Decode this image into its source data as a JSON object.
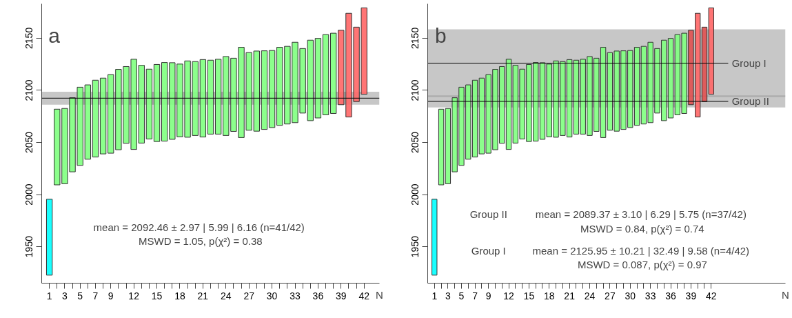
{
  "chart_data": [
    {
      "type": "bar",
      "title": "a",
      "xlabel": "N",
      "x": [
        1,
        2,
        3,
        4,
        5,
        6,
        7,
        8,
        9,
        10,
        11,
        12,
        13,
        14,
        15,
        16,
        17,
        18,
        19,
        20,
        21,
        22,
        23,
        24,
        25,
        26,
        27,
        28,
        29,
        30,
        31,
        32,
        33,
        34,
        35,
        36,
        37,
        38,
        39,
        40,
        41,
        42
      ],
      "base": [
        1922.7,
        2009.3,
        2010.4,
        2021.8,
        2028.0,
        2033.9,
        2036.0,
        2039.0,
        2039.7,
        2043.0,
        2049.2,
        2043.3,
        2049.4,
        2053.3,
        2050.9,
        2051.3,
        2053.0,
        2055.4,
        2055.0,
        2056.7,
        2055.2,
        2058.0,
        2058.0,
        2056.7,
        2060.6,
        2054.7,
        2061.7,
        2060.8,
        2062.5,
        2064.3,
        2066.4,
        2067.7,
        2069.0,
        2078.2,
        2070.9,
        2073.5,
        2076.5,
        2077.8,
        2086.2,
        2074.4,
        2089.2,
        2096.2
      ],
      "values": [
        72.8,
        72.6,
        72.2,
        71.1,
        75.0,
        71.3,
        73.7,
        72.7,
        75.4,
        77.1,
        73.6,
        86.5,
        74.6,
        67.0,
        73.9,
        75.4,
        73.5,
        69.8,
        73.2,
        70.9,
        74.3,
        70.9,
        71.8,
        75.7,
        70.2,
        86.6,
        74.5,
        76.9,
        75.4,
        73.9,
        74.9,
        74.5,
        77.1,
        61.9,
        77.2,
        76.3,
        77.0,
        77.0,
        71.4,
        99.5,
        71.4,
        82.9
      ],
      "colors": [
        "#00ffff",
        "#80ff80",
        "#80ff80",
        "#80ff80",
        "#80ff80",
        "#80ff80",
        "#80ff80",
        "#80ff80",
        "#80ff80",
        "#80ff80",
        "#80ff80",
        "#80ff80",
        "#80ff80",
        "#80ff80",
        "#80ff80",
        "#80ff80",
        "#80ff80",
        "#80ff80",
        "#80ff80",
        "#80ff80",
        "#80ff80",
        "#80ff80",
        "#80ff80",
        "#80ff80",
        "#80ff80",
        "#80ff80",
        "#80ff80",
        "#80ff80",
        "#80ff80",
        "#80ff80",
        "#80ff80",
        "#80ff80",
        "#80ff80",
        "#80ff80",
        "#80ff80",
        "#80ff80",
        "#80ff80",
        "#80ff80",
        "#ff6666",
        "#ff6666",
        "#ff6666",
        "#ff6666"
      ],
      "xlim": [
        0,
        44
      ],
      "ylim": [
        1915,
        2183
      ],
      "xticks": [
        1,
        {
          "value": 2,
          "label": null
        },
        3,
        {
          "value": 4,
          "label": null
        },
        5,
        {
          "value": 6,
          "label": null
        },
        7,
        {
          "value": 8,
          "label": null
        },
        9,
        {
          "value": 10,
          "label": null
        },
        {
          "value": 11,
          "label": null
        },
        12,
        {
          "value": 13,
          "label": null
        },
        {
          "value": 14,
          "label": null
        },
        15,
        {
          "value": 16,
          "label": null
        },
        {
          "value": 17,
          "label": null
        },
        18,
        {
          "value": 19,
          "label": null
        },
        {
          "value": 20,
          "label": null
        },
        21,
        {
          "value": 22,
          "label": null
        },
        {
          "value": 23,
          "label": null
        },
        24,
        {
          "value": 25,
          "label": null
        },
        {
          "value": 26,
          "label": null
        },
        27,
        {
          "value": 28,
          "label": null
        },
        {
          "value": 29,
          "label": null
        },
        30,
        {
          "value": 31,
          "label": null
        },
        {
          "value": 32,
          "label": null
        },
        33,
        {
          "value": 34,
          "label": null
        },
        {
          "value": 35,
          "label": null
        },
        36,
        {
          "value": 37,
          "label": null
        },
        {
          "value": 38,
          "label": null
        },
        39,
        {
          "value": 40,
          "label": null
        },
        {
          "value": 41,
          "label": null
        },
        42
      ],
      "yticks": [
        1950,
        2000,
        2050,
        2100,
        2150
      ],
      "ref_lines": [
        {
          "axis": "y",
          "value": 2092.46,
          "color": "#000000"
        }
      ],
      "bands": [
        {
          "axis": "y",
          "from": 2086.3,
          "to": 2098.62,
          "color": "#999999"
        }
      ],
      "annotations": [
        "mean = 2092.46 ± 2.97 | 5.99 | 6.16  (n=41/42)",
        "MSWD = 1.05, p(χ²) = 0.38"
      ]
    },
    {
      "type": "bar",
      "title": "b",
      "xlabel": "N",
      "x": [
        1,
        2,
        3,
        4,
        5,
        6,
        7,
        8,
        9,
        10,
        11,
        12,
        13,
        14,
        15,
        16,
        17,
        18,
        19,
        20,
        21,
        22,
        23,
        24,
        25,
        26,
        27,
        28,
        29,
        30,
        31,
        32,
        33,
        34,
        35,
        36,
        37,
        38,
        39,
        40,
        41,
        42
      ],
      "base": [
        1922.7,
        2009.3,
        2010.4,
        2021.8,
        2028.0,
        2033.9,
        2036.0,
        2039.0,
        2039.7,
        2043.0,
        2049.2,
        2043.3,
        2049.4,
        2053.3,
        2050.9,
        2051.3,
        2053.0,
        2055.4,
        2055.0,
        2056.7,
        2055.2,
        2058.0,
        2058.0,
        2056.7,
        2060.6,
        2054.7,
        2061.7,
        2060.8,
        2062.5,
        2064.3,
        2066.4,
        2067.7,
        2069.0,
        2078.2,
        2070.9,
        2073.5,
        2076.5,
        2077.8,
        2086.2,
        2074.4,
        2089.2,
        2096.2
      ],
      "values": [
        72.8,
        72.6,
        72.2,
        71.1,
        75.0,
        71.3,
        73.7,
        72.7,
        75.4,
        77.1,
        73.6,
        86.5,
        74.6,
        67.0,
        73.9,
        75.4,
        73.5,
        69.8,
        73.2,
        70.9,
        74.3,
        70.9,
        71.8,
        75.7,
        70.2,
        86.6,
        74.5,
        76.9,
        75.4,
        73.9,
        74.9,
        74.5,
        77.1,
        61.9,
        77.2,
        76.3,
        77.0,
        77.0,
        71.4,
        99.5,
        71.4,
        82.9
      ],
      "colors": [
        "#00ffff",
        "#80ff80",
        "#80ff80",
        "#80ff80",
        "#80ff80",
        "#80ff80",
        "#80ff80",
        "#80ff80",
        "#80ff80",
        "#80ff80",
        "#80ff80",
        "#80ff80",
        "#80ff80",
        "#80ff80",
        "#80ff80",
        "#80ff80",
        "#80ff80",
        "#80ff80",
        "#80ff80",
        "#80ff80",
        "#80ff80",
        "#80ff80",
        "#80ff80",
        "#80ff80",
        "#80ff80",
        "#80ff80",
        "#80ff80",
        "#80ff80",
        "#80ff80",
        "#80ff80",
        "#80ff80",
        "#80ff80",
        "#80ff80",
        "#80ff80",
        "#80ff80",
        "#80ff80",
        "#80ff80",
        "#80ff80",
        "#e05050",
        "#ff6666",
        "#e05050",
        "#ff6666"
      ],
      "xlim": [
        0,
        53
      ],
      "ylim": [
        1915,
        2183
      ],
      "xticks": [
        1,
        {
          "value": 2,
          "label": null
        },
        3,
        {
          "value": 4,
          "label": null
        },
        5,
        {
          "value": 6,
          "label": null
        },
        7,
        {
          "value": 8,
          "label": null
        },
        9,
        {
          "value": 10,
          "label": null
        },
        {
          "value": 11,
          "label": null
        },
        12,
        {
          "value": 13,
          "label": null
        },
        {
          "value": 14,
          "label": null
        },
        15,
        {
          "value": 16,
          "label": null
        },
        {
          "value": 17,
          "label": null
        },
        18,
        {
          "value": 19,
          "label": null
        },
        {
          "value": 20,
          "label": null
        },
        21,
        {
          "value": 22,
          "label": null
        },
        {
          "value": 23,
          "label": null
        },
        24,
        {
          "value": 25,
          "label": null
        },
        {
          "value": 26,
          "label": null
        },
        27,
        {
          "value": 28,
          "label": null
        },
        {
          "value": 29,
          "label": null
        },
        30,
        {
          "value": 31,
          "label": null
        },
        {
          "value": 32,
          "label": null
        },
        33,
        {
          "value": 34,
          "label": null
        },
        {
          "value": 35,
          "label": null
        },
        36,
        {
          "value": 37,
          "label": null
        },
        {
          "value": 38,
          "label": null
        },
        39,
        {
          "value": 40,
          "label": null
        },
        {
          "value": 41,
          "label": null
        },
        42
      ],
      "yticks": [
        1950,
        2000,
        2050,
        2100,
        2150
      ],
      "ref_lines": [
        {
          "axis": "y",
          "value": 2125.95,
          "label": "Group I",
          "color": "#000000"
        },
        {
          "axis": "y",
          "value": 2089.37,
          "label": "Group II",
          "color": "#000000"
        }
      ],
      "bands": [
        {
          "axis": "y",
          "from": 2093.46,
          "to": 2158.44,
          "color": "#999999"
        },
        {
          "axis": "y",
          "from": 2083.62,
          "to": 2095.12,
          "color": "#999999"
        }
      ],
      "annotations": [
        "Group II",
        "mean = 2089.37 ± 3.10 | 6.29 | 5.75  (n=37/42)",
        "MSWD = 0.84, p(χ²) = 0.74",
        "Group I",
        "mean = 2125.95 ± 10.21 | 32.49 | 9.58  (n=4/42)",
        "MSWD = 0.087, p(χ²) = 0.97"
      ]
    }
  ]
}
